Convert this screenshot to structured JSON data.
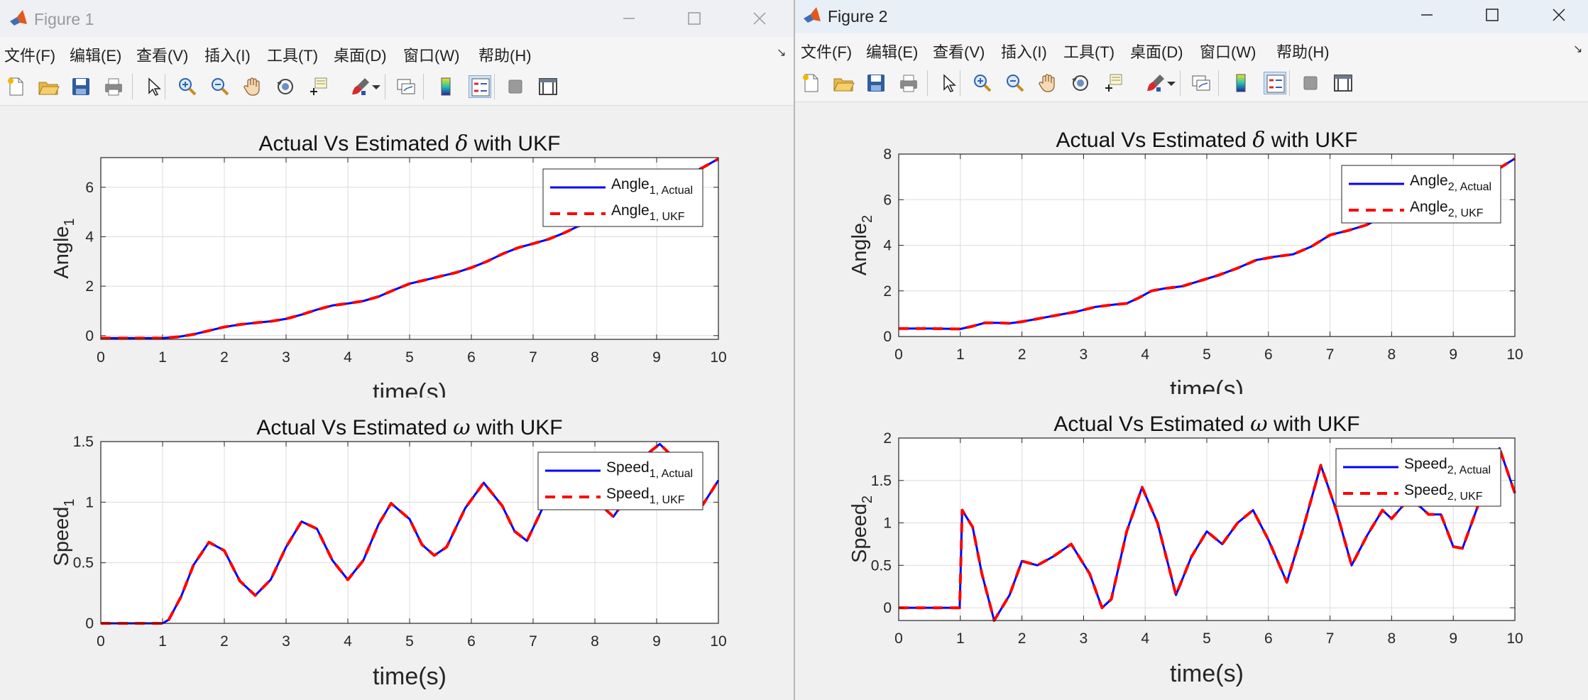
{
  "windows": [
    {
      "title": "Figure 1",
      "menu": [
        "文件(F)",
        "编辑(E)",
        "查看(V)",
        "插入(I)",
        "工具(T)",
        "桌面(D)",
        "窗口(W)",
        "帮助(H)"
      ],
      "dock_symbol": "↘",
      "toolbar_icons": [
        "new-figure-icon",
        "open-file-icon",
        "save-icon",
        "print-icon",
        "pointer-icon",
        "zoom-in-icon",
        "zoom-out-icon",
        "pan-hand-icon",
        "rotate-3d-icon",
        "data-cursor-icon",
        "brush-icon",
        "dropdown-arrow-icon",
        "link-plot-icon",
        "colorbar-icon",
        "legend-icon",
        "hide-plot-tools-icon",
        "show-plot-tools-icon"
      ],
      "plots": [
        {
          "title_pre": "Actual Vs Estimated ",
          "title_symbol": "δ",
          "title_post": " with UKF",
          "ylabel": "Angle",
          "ylabel_sub": "1",
          "xlabel": "time(s)",
          "legend": [
            {
              "main": "Angle",
              "sub": "1, Actual",
              "color": "#0000ff"
            },
            {
              "main": "Angle",
              "sub": "1, UKF",
              "color": "#ff0000"
            }
          ],
          "chart_data": {
            "type": "line",
            "xlim": [
              0,
              10
            ],
            "ylim": [
              -0.15,
              7.2
            ],
            "xticks": [
              0,
              1,
              2,
              3,
              4,
              5,
              6,
              7,
              8,
              9,
              10
            ],
            "yticks": [
              0,
              2,
              4,
              6
            ],
            "grid": true,
            "x": [
              0,
              0.5,
              1,
              1.25,
              1.5,
              1.75,
              2,
              2.25,
              2.5,
              2.75,
              3,
              3.25,
              3.5,
              3.75,
              4,
              4.25,
              4.5,
              4.75,
              5,
              5.25,
              5.5,
              5.75,
              6,
              6.25,
              6.5,
              6.75,
              7,
              7.25,
              7.5,
              7.75,
              8,
              8.25,
              8.5,
              8.75,
              9,
              9.25,
              9.5,
              9.75,
              10
            ],
            "series": [
              {
                "name": "Angle1, Actual",
                "values": [
                  -0.1,
                  -0.1,
                  -0.1,
                  -0.05,
                  0.05,
                  0.2,
                  0.35,
                  0.45,
                  0.52,
                  0.58,
                  0.68,
                  0.85,
                  1.05,
                  1.22,
                  1.3,
                  1.4,
                  1.58,
                  1.85,
                  2.1,
                  2.25,
                  2.4,
                  2.55,
                  2.75,
                  3.0,
                  3.3,
                  3.55,
                  3.72,
                  3.9,
                  4.15,
                  4.45,
                  4.75,
                  4.95,
                  5.1,
                  5.35,
                  5.75,
                  6.15,
                  6.5,
                  6.8,
                  7.15
                ]
              },
              {
                "name": "Angle1, UKF",
                "values": [
                  -0.1,
                  -0.1,
                  -0.1,
                  -0.05,
                  0.05,
                  0.2,
                  0.35,
                  0.45,
                  0.52,
                  0.58,
                  0.68,
                  0.85,
                  1.05,
                  1.22,
                  1.3,
                  1.4,
                  1.58,
                  1.85,
                  2.1,
                  2.25,
                  2.4,
                  2.55,
                  2.75,
                  3.0,
                  3.3,
                  3.55,
                  3.72,
                  3.9,
                  4.15,
                  4.45,
                  4.75,
                  4.95,
                  5.1,
                  5.35,
                  5.75,
                  6.15,
                  6.5,
                  6.8,
                  7.15
                ]
              }
            ]
          }
        },
        {
          "title_pre": "Actual Vs Estimated ",
          "title_symbol": "ω",
          "title_post": " with UKF",
          "ylabel": "Speed",
          "ylabel_sub": "1",
          "xlabel": "time(s)",
          "legend": [
            {
              "main": "Speed",
              "sub": "1, Actual",
              "color": "#0000ff"
            },
            {
              "main": "Speed",
              "sub": "1, UKF",
              "color": "#ff0000"
            }
          ],
          "chart_data": {
            "type": "line",
            "xlim": [
              0,
              10
            ],
            "ylim": [
              0,
              1.5
            ],
            "xticks": [
              0,
              1,
              2,
              3,
              4,
              5,
              6,
              7,
              8,
              9,
              10
            ],
            "yticks": [
              0,
              0.5,
              1,
              1.5
            ],
            "grid": true,
            "x": [
              0,
              0.5,
              1,
              1.1,
              1.3,
              1.5,
              1.75,
              2,
              2.25,
              2.5,
              2.75,
              3,
              3.25,
              3.5,
              3.75,
              4,
              4.25,
              4.5,
              4.7,
              5,
              5.2,
              5.4,
              5.6,
              5.9,
              6.2,
              6.5,
              6.7,
              6.9,
              7.2,
              7.5,
              7.8,
              8.0,
              8.3,
              8.6,
              8.85,
              9.05,
              9.25,
              9.5,
              9.75,
              10
            ],
            "series": [
              {
                "name": "Speed1, Actual",
                "values": [
                  0,
                  0,
                  0,
                  0.03,
                  0.22,
                  0.48,
                  0.67,
                  0.6,
                  0.35,
                  0.23,
                  0.36,
                  0.63,
                  0.84,
                  0.78,
                  0.52,
                  0.36,
                  0.52,
                  0.82,
                  0.99,
                  0.86,
                  0.65,
                  0.56,
                  0.63,
                  0.95,
                  1.16,
                  0.97,
                  0.76,
                  0.68,
                  1.0,
                  1.15,
                  1.12,
                  1.02,
                  0.88,
                  1.1,
                  1.4,
                  1.48,
                  1.38,
                  1.1,
                  0.98,
                  1.18
                ]
              },
              {
                "name": "Speed1, UKF",
                "values": [
                  0,
                  0,
                  0,
                  0.03,
                  0.22,
                  0.48,
                  0.67,
                  0.6,
                  0.35,
                  0.23,
                  0.36,
                  0.63,
                  0.84,
                  0.78,
                  0.52,
                  0.36,
                  0.52,
                  0.82,
                  0.99,
                  0.86,
                  0.65,
                  0.56,
                  0.63,
                  0.95,
                  1.16,
                  0.97,
                  0.76,
                  0.68,
                  1.0,
                  1.15,
                  1.12,
                  1.02,
                  0.88,
                  1.1,
                  1.4,
                  1.48,
                  1.38,
                  1.1,
                  0.98,
                  1.18
                ]
              }
            ]
          }
        }
      ]
    },
    {
      "title": "Figure 2",
      "menu": [
        "文件(F)",
        "编辑(E)",
        "查看(V)",
        "插入(I)",
        "工具(T)",
        "桌面(D)",
        "窗口(W)",
        "帮助(H)"
      ],
      "dock_symbol": "↘",
      "toolbar_icons": [
        "new-figure-icon",
        "open-file-icon",
        "save-icon",
        "print-icon",
        "pointer-icon",
        "zoom-in-icon",
        "zoom-out-icon",
        "pan-hand-icon",
        "rotate-3d-icon",
        "data-cursor-icon",
        "brush-icon",
        "dropdown-arrow-icon",
        "link-plot-icon",
        "colorbar-icon",
        "legend-icon",
        "hide-plot-tools-icon",
        "show-plot-tools-icon"
      ],
      "plots": [
        {
          "title_pre": "Actual Vs Estimated ",
          "title_symbol": "δ",
          "title_post": " with UKF",
          "ylabel": "Angle",
          "ylabel_sub": "2",
          "xlabel": "time(s)",
          "legend": [
            {
              "main": "Angle",
              "sub": "2, Actual",
              "color": "#0000ff"
            },
            {
              "main": "Angle",
              "sub": "2, UKF",
              "color": "#ff0000"
            }
          ],
          "chart_data": {
            "type": "line",
            "xlim": [
              0,
              10
            ],
            "ylim": [
              0,
              8
            ],
            "xticks": [
              0,
              1,
              2,
              3,
              4,
              5,
              6,
              7,
              8,
              9,
              10
            ],
            "yticks": [
              0,
              2,
              4,
              6,
              8
            ],
            "grid": true,
            "x": [
              0,
              0.5,
              1,
              1.2,
              1.4,
              1.6,
              1.8,
              2,
              2.3,
              2.6,
              2.9,
              3.2,
              3.5,
              3.7,
              3.9,
              4.1,
              4.3,
              4.6,
              4.9,
              5.2,
              5.5,
              5.8,
              6.1,
              6.4,
              6.7,
              7,
              7.3,
              7.6,
              7.9,
              8.2,
              8.5,
              8.8,
              9.1,
              9.4,
              9.7,
              10
            ],
            "series": [
              {
                "name": "Angle2, Actual",
                "values": [
                  0.35,
                  0.35,
                  0.33,
                  0.45,
                  0.6,
                  0.6,
                  0.58,
                  0.65,
                  0.8,
                  0.95,
                  1.1,
                  1.3,
                  1.4,
                  1.45,
                  1.7,
                  2.0,
                  2.1,
                  2.2,
                  2.45,
                  2.7,
                  3.0,
                  3.35,
                  3.5,
                  3.6,
                  3.95,
                  4.45,
                  4.65,
                  4.9,
                  5.3,
                  5.55,
                  5.75,
                  5.95,
                  6.3,
                  6.75,
                  7.3,
                  7.8
                ]
              },
              {
                "name": "Angle2, UKF",
                "values": [
                  0.35,
                  0.35,
                  0.33,
                  0.45,
                  0.6,
                  0.6,
                  0.58,
                  0.65,
                  0.8,
                  0.95,
                  1.1,
                  1.3,
                  1.4,
                  1.45,
                  1.7,
                  2.0,
                  2.1,
                  2.2,
                  2.45,
                  2.7,
                  3.0,
                  3.35,
                  3.5,
                  3.6,
                  3.95,
                  4.45,
                  4.65,
                  4.9,
                  5.3,
                  5.55,
                  5.75,
                  5.95,
                  6.3,
                  6.75,
                  7.3,
                  7.8
                ]
              }
            ]
          }
        },
        {
          "title_pre": "Actual Vs Estimated ",
          "title_symbol": "ω",
          "title_post": " with UKF",
          "ylabel": "Speed",
          "ylabel_sub": "2",
          "xlabel": "time(s)",
          "legend": [
            {
              "main": "Speed",
              "sub": "2, Actual",
              "color": "#0000ff"
            },
            {
              "main": "Speed",
              "sub": "2, UKF",
              "color": "#ff0000"
            }
          ],
          "chart_data": {
            "type": "line",
            "xlim": [
              0,
              10
            ],
            "ylim": [
              -0.15,
              2
            ],
            "xticks": [
              0,
              1,
              2,
              3,
              4,
              5,
              6,
              7,
              8,
              9,
              10
            ],
            "yticks": [
              0,
              0.5,
              1,
              1.5,
              2
            ],
            "grid": true,
            "x": [
              0,
              0.5,
              0.99,
              1.03,
              1.2,
              1.35,
              1.55,
              1.8,
              2.0,
              2.25,
              2.5,
              2.8,
              3.1,
              3.3,
              3.45,
              3.7,
              3.95,
              4.2,
              4.5,
              4.75,
              5.0,
              5.25,
              5.5,
              5.75,
              6.0,
              6.3,
              6.55,
              6.85,
              7.1,
              7.35,
              7.6,
              7.85,
              8.0,
              8.3,
              8.6,
              8.8,
              9.0,
              9.15,
              9.4,
              9.75,
              10
            ],
            "series": [
              {
                "name": "Speed2, Actual",
                "values": [
                  0,
                  0,
                  0,
                  1.15,
                  0.95,
                  0.4,
                  -0.15,
                  0.15,
                  0.55,
                  0.5,
                  0.6,
                  0.75,
                  0.4,
                  0.0,
                  0.1,
                  0.9,
                  1.42,
                  1.0,
                  0.15,
                  0.6,
                  0.9,
                  0.75,
                  1.0,
                  1.15,
                  0.8,
                  0.3,
                  0.9,
                  1.68,
                  1.15,
                  0.5,
                  0.85,
                  1.15,
                  1.05,
                  1.3,
                  1.1,
                  1.1,
                  0.72,
                  0.7,
                  1.2,
                  1.88,
                  1.35
                ]
              },
              {
                "name": "Speed2, UKF",
                "values": [
                  0,
                  0,
                  0,
                  1.15,
                  0.95,
                  0.4,
                  -0.15,
                  0.15,
                  0.55,
                  0.5,
                  0.6,
                  0.75,
                  0.4,
                  0.0,
                  0.1,
                  0.9,
                  1.42,
                  1.0,
                  0.15,
                  0.6,
                  0.9,
                  0.75,
                  1.0,
                  1.15,
                  0.8,
                  0.3,
                  0.9,
                  1.68,
                  1.15,
                  0.5,
                  0.85,
                  1.15,
                  1.05,
                  1.3,
                  1.1,
                  1.1,
                  0.72,
                  0.7,
                  1.2,
                  1.88,
                  1.35
                ]
              }
            ]
          }
        }
      ]
    }
  ]
}
